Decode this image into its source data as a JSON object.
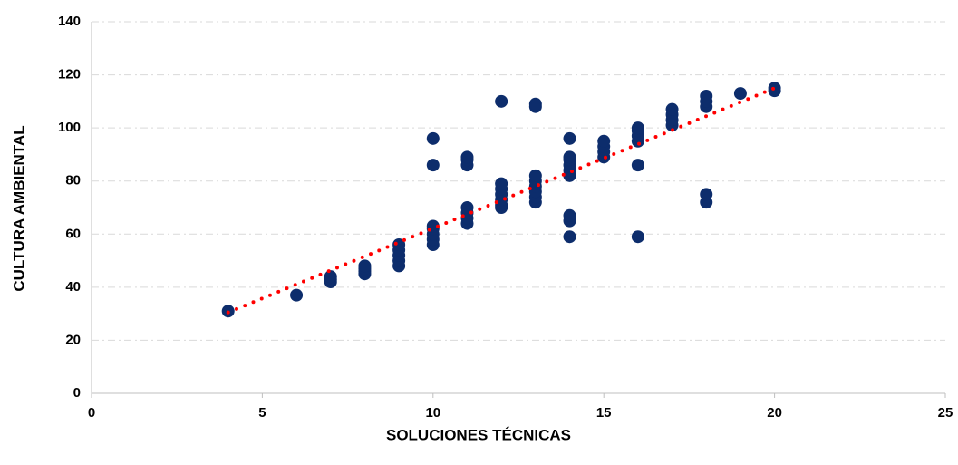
{
  "chart_data": {
    "type": "scatter",
    "xlabel": "SOLUCIONES TÉCNICAS",
    "ylabel": "CULTURA AMBIENTAL",
    "x": [
      4,
      6,
      7,
      7,
      7,
      8,
      8,
      8,
      8,
      9,
      9,
      9,
      9,
      9,
      10,
      10,
      10,
      10,
      10,
      10,
      10,
      11,
      11,
      11,
      11,
      11,
      11,
      11,
      12,
      12,
      12,
      12,
      12,
      12,
      12,
      13,
      13,
      13,
      13,
      13,
      13,
      13,
      13,
      14,
      14,
      14,
      14,
      14,
      14,
      14,
      14,
      14,
      15,
      15,
      15,
      15,
      16,
      16,
      16,
      16,
      16,
      16,
      17,
      17,
      17,
      17,
      18,
      18,
      18,
      18,
      18,
      19,
      20,
      20
    ],
    "values": [
      31,
      37,
      42,
      43,
      44,
      45,
      46,
      47,
      48,
      48,
      50,
      52,
      54,
      56,
      56,
      58,
      60,
      62,
      63,
      86,
      96,
      64,
      66,
      68,
      70,
      86,
      88,
      89,
      70,
      71,
      73,
      75,
      77,
      79,
      110,
      72,
      74,
      76,
      78,
      80,
      82,
      108,
      109,
      59,
      65,
      67,
      82,
      84,
      86,
      88,
      89,
      96,
      89,
      91,
      93,
      95,
      59,
      86,
      95,
      97,
      99,
      100,
      101,
      103,
      105,
      107,
      72,
      75,
      108,
      110,
      112,
      113,
      114,
      115
    ],
    "color": "#0d2d6c",
    "trendline": {
      "x": [
        4,
        20
      ],
      "values": [
        30.5,
        115
      ],
      "color": "#ff0000"
    },
    "xlim": [
      0,
      25
    ],
    "xticks": [
      0,
      5,
      10,
      15,
      20,
      25
    ],
    "ylim": [
      0,
      140
    ],
    "yticks": [
      0,
      20,
      40,
      60,
      80,
      100,
      120,
      140
    ],
    "grid": true
  }
}
